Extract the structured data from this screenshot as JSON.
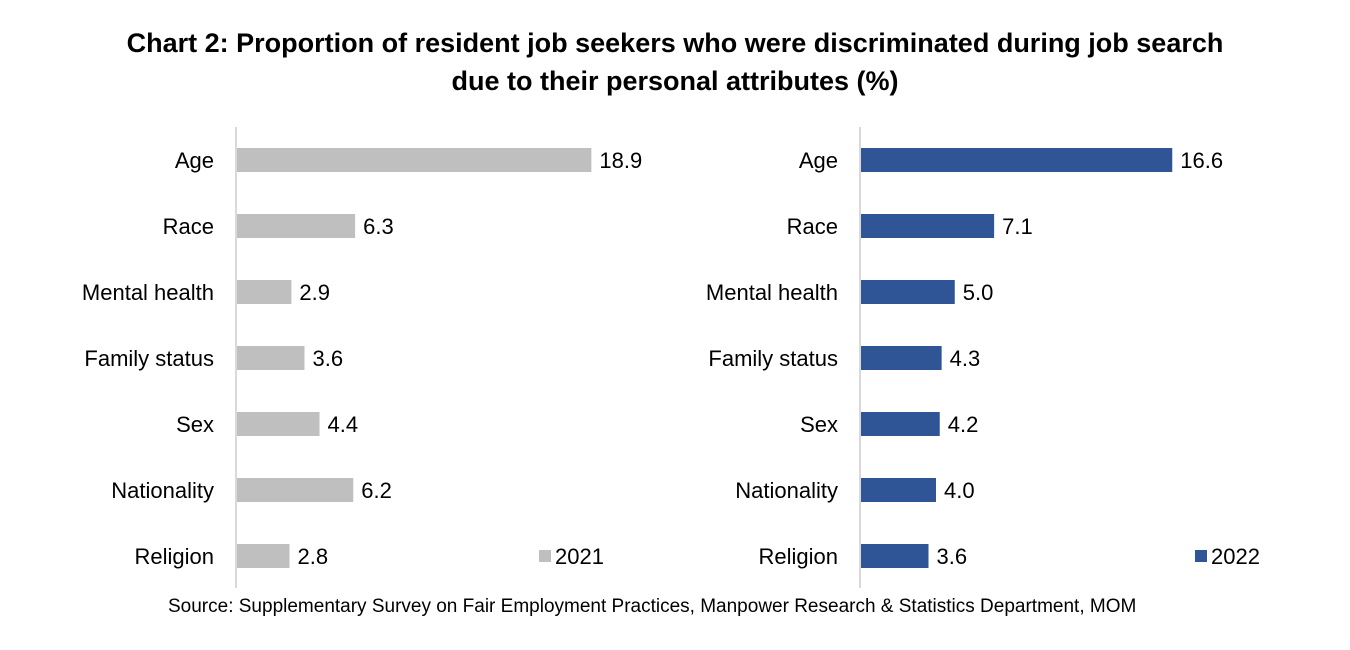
{
  "title_line1": "Chart 2: Proportion of resident job seekers who were discriminated during job search",
  "title_line2": "due to their personal attributes (%)",
  "source": "Source: Supplementary Survey on Fair Employment Practices, Manpower Research & Statistics Department, MOM",
  "chart_data": [
    {
      "type": "bar",
      "orientation": "horizontal",
      "categories": [
        "Age",
        "Race",
        "Mental health",
        "Family status",
        "Sex",
        "Nationality",
        "Religion"
      ],
      "series": [
        {
          "name": "2021",
          "values": [
            18.9,
            6.3,
            2.9,
            3.6,
            4.4,
            6.2,
            2.8
          ],
          "color": "#bfbfbf"
        }
      ],
      "xlim": [
        0,
        20
      ],
      "legend": "bottom-right",
      "grid": false
    },
    {
      "type": "bar",
      "orientation": "horizontal",
      "categories": [
        "Age",
        "Race",
        "Mental health",
        "Family status",
        "Sex",
        "Nationality",
        "Religion"
      ],
      "series": [
        {
          "name": "2022",
          "values": [
            16.6,
            7.1,
            5.0,
            4.3,
            4.2,
            4.0,
            3.6
          ],
          "color": "#2f5597"
        }
      ],
      "xlim": [
        0,
        20
      ],
      "legend": "bottom-right",
      "grid": false
    }
  ]
}
